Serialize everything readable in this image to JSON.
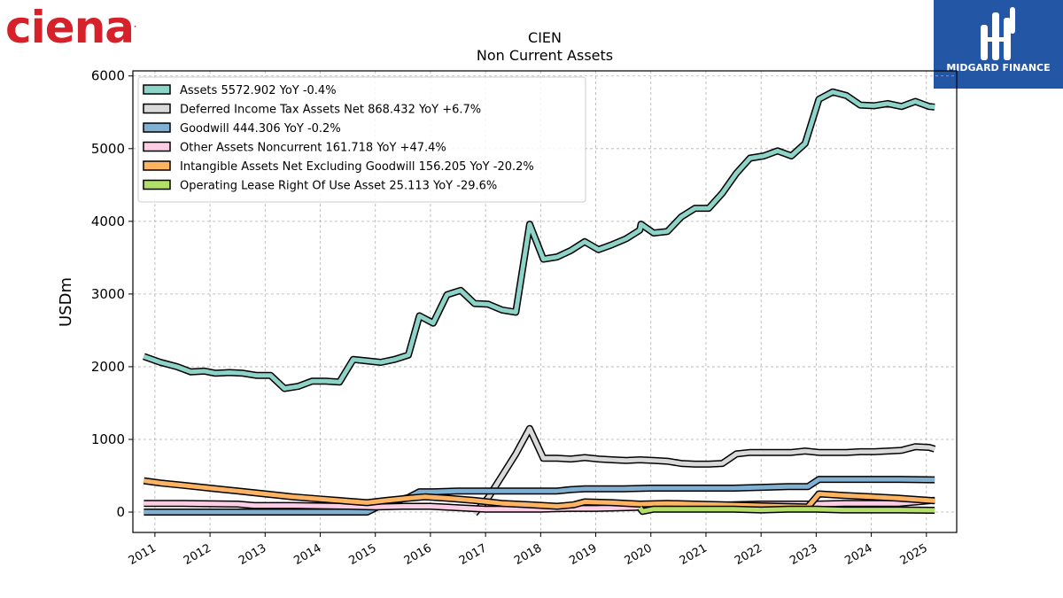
{
  "branding": {
    "left_logo_text": "ciena",
    "left_logo_mark": ".",
    "right_logo_text": "MIDGARD FINANCE",
    "right_logo_icon": "midgard-logo-icon"
  },
  "chart_data": {
    "type": "line",
    "title": "CIEN",
    "subtitle": "Non Current  Assets",
    "ylabel": "USDm",
    "xlabel": "",
    "xlim": [
      2010.6,
      2025.55
    ],
    "ylim": [
      -280,
      6070
    ],
    "yticks": [
      0,
      1000,
      2000,
      3000,
      4000,
      5000,
      6000
    ],
    "xticks": [
      2011,
      2012,
      2013,
      2014,
      2015,
      2016,
      2017,
      2018,
      2019,
      2020,
      2021,
      2022,
      2023,
      2024,
      2025
    ],
    "grid": true,
    "legend_position": "top-left",
    "series": [
      {
        "name": "Assets",
        "legend_label": "Assets  5572.902 YoY -0.4%",
        "color": "#8dd3c7",
        "points": [
          [
            2010.8,
            2140
          ],
          [
            2011.1,
            2060
          ],
          [
            2011.4,
            2000
          ],
          [
            2011.65,
            1930
          ],
          [
            2011.9,
            1940
          ],
          [
            2012.1,
            1910
          ],
          [
            2012.35,
            1920
          ],
          [
            2012.6,
            1910
          ],
          [
            2012.85,
            1880
          ],
          [
            2013.1,
            1880
          ],
          [
            2013.35,
            1700
          ],
          [
            2013.6,
            1730
          ],
          [
            2013.85,
            1800
          ],
          [
            2014.1,
            1800
          ],
          [
            2014.35,
            1790
          ],
          [
            2014.6,
            2100
          ],
          [
            2014.85,
            2080
          ],
          [
            2015.1,
            2060
          ],
          [
            2015.35,
            2100
          ],
          [
            2015.6,
            2160
          ],
          [
            2015.8,
            2700
          ],
          [
            2016.05,
            2600
          ],
          [
            2016.3,
            2990
          ],
          [
            2016.55,
            3050
          ],
          [
            2016.8,
            2870
          ],
          [
            2017.05,
            2860
          ],
          [
            2017.3,
            2780
          ],
          [
            2017.55,
            2750
          ],
          [
            2017.8,
            3960
          ],
          [
            2018.05,
            3480
          ],
          [
            2018.3,
            3510
          ],
          [
            2018.55,
            3600
          ],
          [
            2018.8,
            3720
          ],
          [
            2019.05,
            3610
          ],
          [
            2019.3,
            3680
          ],
          [
            2019.55,
            3760
          ],
          [
            2019.8,
            3880
          ],
          [
            2019.82,
            3960
          ],
          [
            2020.05,
            3840
          ],
          [
            2020.3,
            3860
          ],
          [
            2020.55,
            4060
          ],
          [
            2020.8,
            4180
          ],
          [
            2021.05,
            4180
          ],
          [
            2021.3,
            4390
          ],
          [
            2021.55,
            4660
          ],
          [
            2021.8,
            4870
          ],
          [
            2022.05,
            4900
          ],
          [
            2022.3,
            4970
          ],
          [
            2022.55,
            4900
          ],
          [
            2022.8,
            5070
          ],
          [
            2023.05,
            5680
          ],
          [
            2023.3,
            5780
          ],
          [
            2023.55,
            5730
          ],
          [
            2023.8,
            5600
          ],
          [
            2024.05,
            5590
          ],
          [
            2024.3,
            5620
          ],
          [
            2024.55,
            5580
          ],
          [
            2024.8,
            5650
          ],
          [
            2025.05,
            5580
          ],
          [
            2025.15,
            5573
          ]
        ]
      },
      {
        "name": "Deferred Income Tax Assets Net",
        "legend_label": "Deferred Income Tax Assets Net  868.432 YoY +6.7%",
        "color": "#d9d9d9",
        "points": [
          [
            2016.8,
            -20
          ],
          [
            2017.05,
            200
          ],
          [
            2017.3,
            500
          ],
          [
            2017.55,
            800
          ],
          [
            2017.8,
            1150
          ],
          [
            2018.05,
            740
          ],
          [
            2018.3,
            740
          ],
          [
            2018.55,
            730
          ],
          [
            2018.8,
            750
          ],
          [
            2019.05,
            730
          ],
          [
            2019.3,
            720
          ],
          [
            2019.55,
            710
          ],
          [
            2019.8,
            720
          ],
          [
            2020.05,
            710
          ],
          [
            2020.3,
            700
          ],
          [
            2020.55,
            670
          ],
          [
            2020.8,
            660
          ],
          [
            2021.05,
            660
          ],
          [
            2021.3,
            670
          ],
          [
            2021.55,
            800
          ],
          [
            2021.8,
            820
          ],
          [
            2022.05,
            820
          ],
          [
            2022.3,
            820
          ],
          [
            2022.55,
            820
          ],
          [
            2022.8,
            840
          ],
          [
            2023.05,
            820
          ],
          [
            2023.3,
            820
          ],
          [
            2023.55,
            820
          ],
          [
            2023.8,
            830
          ],
          [
            2024.05,
            830
          ],
          [
            2024.3,
            840
          ],
          [
            2024.55,
            850
          ],
          [
            2024.8,
            900
          ],
          [
            2025.05,
            890
          ],
          [
            2025.15,
            868
          ]
        ]
      },
      {
        "name": "Goodwill",
        "legend_label": "Goodwill  444.306 YoY -0.2%",
        "color": "#80b1d3",
        "points": [
          [
            2010.8,
            0
          ],
          [
            2011.5,
            0
          ],
          [
            2012.5,
            0
          ],
          [
            2013,
            0
          ],
          [
            2014,
            0
          ],
          [
            2014.85,
            0
          ],
          [
            2015.2,
            130
          ],
          [
            2015.6,
            200
          ],
          [
            2015.8,
            280
          ],
          [
            2016.05,
            280
          ],
          [
            2016.5,
            290
          ],
          [
            2017.0,
            290
          ],
          [
            2017.5,
            290
          ],
          [
            2018.0,
            290
          ],
          [
            2018.3,
            290
          ],
          [
            2018.55,
            310
          ],
          [
            2018.8,
            320
          ],
          [
            2019.5,
            320
          ],
          [
            2020.0,
            330
          ],
          [
            2020.5,
            330
          ],
          [
            2021.0,
            330
          ],
          [
            2021.5,
            330
          ],
          [
            2022.0,
            340
          ],
          [
            2022.5,
            350
          ],
          [
            2022.85,
            350
          ],
          [
            2023.05,
            450
          ],
          [
            2023.5,
            450
          ],
          [
            2024.0,
            450
          ],
          [
            2024.5,
            450
          ],
          [
            2025.15,
            444
          ]
        ]
      },
      {
        "name": "Other Assets Noncurrent",
        "legend_label": "Other Assets Noncurrent  161.718 YoY +47.4%",
        "color": "#fccde5",
        "points": [
          [
            2010.8,
            120
          ],
          [
            2011.5,
            120
          ],
          [
            2012.5,
            110
          ],
          [
            2012.8,
            90
          ],
          [
            2013.5,
            90
          ],
          [
            2014.5,
            80
          ],
          [
            2015.0,
            70
          ],
          [
            2015.5,
            80
          ],
          [
            2016.0,
            80
          ],
          [
            2016.5,
            60
          ],
          [
            2017.0,
            40
          ],
          [
            2017.5,
            40
          ],
          [
            2018.0,
            40
          ],
          [
            2018.5,
            50
          ],
          [
            2019.0,
            50
          ],
          [
            2019.5,
            60
          ],
          [
            2020.0,
            70
          ],
          [
            2020.5,
            80
          ],
          [
            2021.0,
            90
          ],
          [
            2021.5,
            100
          ],
          [
            2022.0,
            110
          ],
          [
            2022.5,
            110
          ],
          [
            2023.0,
            110
          ],
          [
            2023.5,
            120
          ],
          [
            2024.0,
            120
          ],
          [
            2024.5,
            120
          ],
          [
            2025.15,
            162
          ]
        ]
      },
      {
        "name": "Intangible Assets Net Excluding Goodwill",
        "legend_label": "Intangible Assets Net Excluding Goodwill  156.205 YoY -20.2%",
        "color": "#fdb462",
        "points": [
          [
            2010.8,
            430
          ],
          [
            2011.1,
            400
          ],
          [
            2011.5,
            370
          ],
          [
            2012.0,
            330
          ],
          [
            2012.5,
            290
          ],
          [
            2013.0,
            250
          ],
          [
            2013.5,
            210
          ],
          [
            2014.0,
            180
          ],
          [
            2014.5,
            150
          ],
          [
            2014.85,
            130
          ],
          [
            2015.2,
            160
          ],
          [
            2015.6,
            190
          ],
          [
            2015.9,
            210
          ],
          [
            2016.3,
            190
          ],
          [
            2016.8,
            160
          ],
          [
            2017.3,
            120
          ],
          [
            2017.8,
            100
          ],
          [
            2018.3,
            80
          ],
          [
            2018.6,
            100
          ],
          [
            2018.8,
            140
          ],
          [
            2019.3,
            130
          ],
          [
            2019.8,
            110
          ],
          [
            2020.3,
            120
          ],
          [
            2020.8,
            110
          ],
          [
            2021.3,
            100
          ],
          [
            2021.8,
            90
          ],
          [
            2022.3,
            80
          ],
          [
            2022.85,
            70
          ],
          [
            2023.05,
            250
          ],
          [
            2023.5,
            230
          ],
          [
            2024.0,
            210
          ],
          [
            2024.5,
            190
          ],
          [
            2025.15,
            156
          ]
        ]
      },
      {
        "name": "Operating Lease Right Of Use Asset",
        "legend_label": "Operating Lease Right Of Use Asset  25.113 YoY -29.6%",
        "color": "#b3de69",
        "points": [
          [
            2019.8,
            60
          ],
          [
            2019.85,
            10
          ],
          [
            2020.05,
            40
          ],
          [
            2020.5,
            40
          ],
          [
            2021.0,
            40
          ],
          [
            2021.5,
            40
          ],
          [
            2022.0,
            30
          ],
          [
            2022.5,
            40
          ],
          [
            2023.0,
            40
          ],
          [
            2023.5,
            30
          ],
          [
            2024.0,
            30
          ],
          [
            2024.5,
            30
          ],
          [
            2025.15,
            25
          ]
        ]
      }
    ]
  }
}
